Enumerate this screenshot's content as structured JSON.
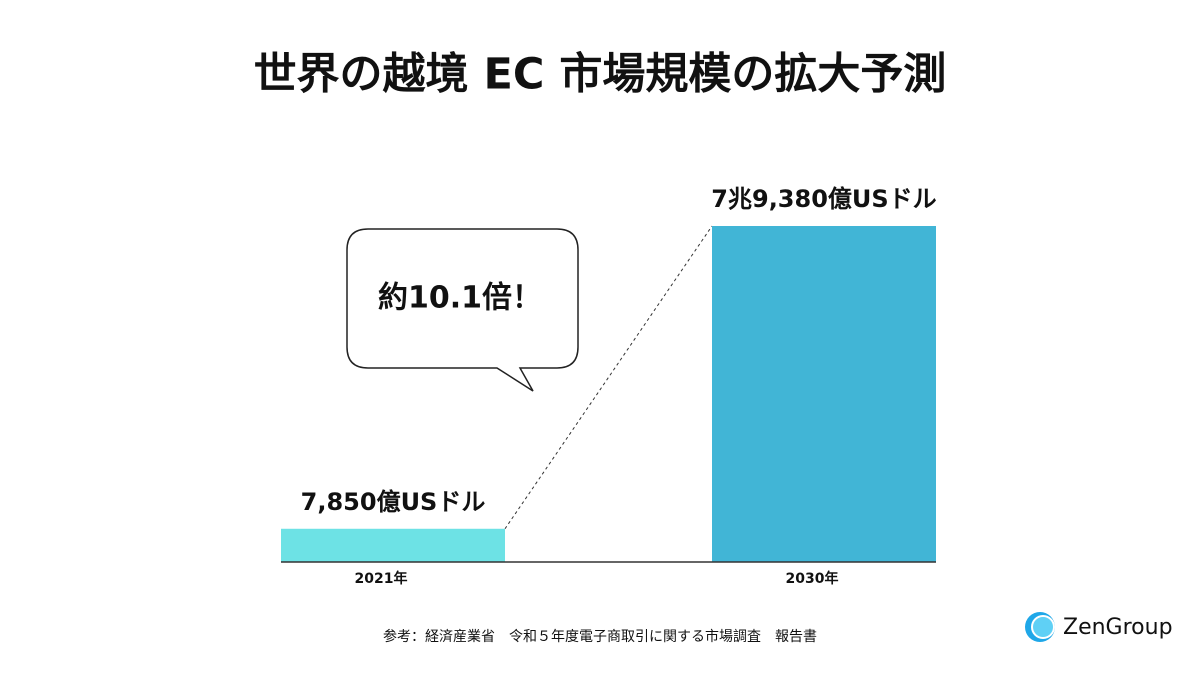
{
  "chart_data": {
    "type": "bar",
    "title": "世界の越境 EC 市場規模の拡大予測",
    "categories": [
      "2021年",
      "2030年"
    ],
    "values": [
      7850,
      79380
    ],
    "value_labels": [
      "7,850億USドル",
      "7兆9,380億USドル"
    ],
    "colors": [
      "#6de2e5",
      "#41b5d6"
    ],
    "annotation": "約10.1倍！"
  },
  "footer": {
    "source": "参考：経済産業省　令和５年度電子商取引に関する市場調査　報告書",
    "logo": "ZenGroup"
  }
}
